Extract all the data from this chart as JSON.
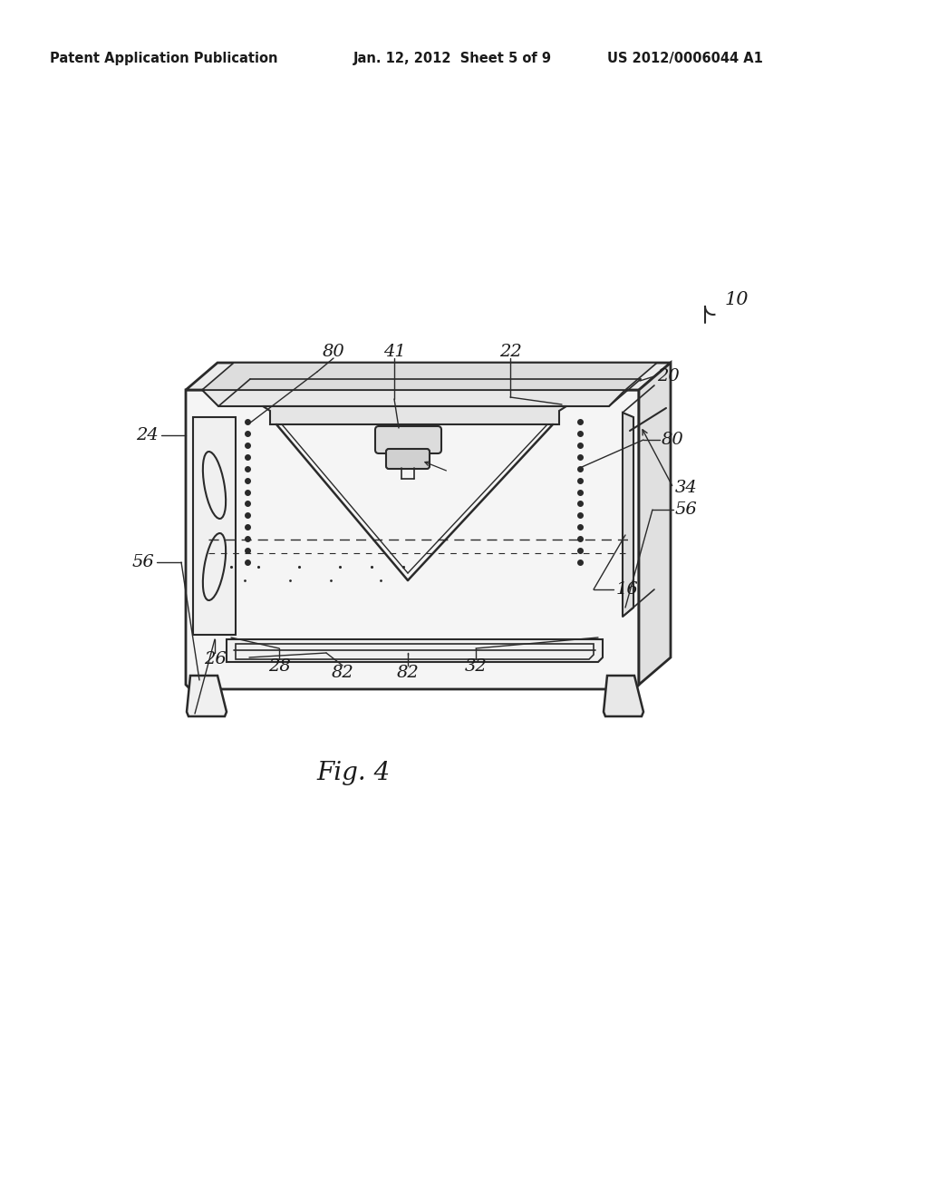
{
  "background_color": "#ffffff",
  "header_left": "Patent Application Publication",
  "header_center": "Jan. 12, 2012  Sheet 5 of 9",
  "header_right": "US 2012/0006044 A1",
  "figure_label": "Fig. 4",
  "line_color": "#2a2a2a",
  "text_color": "#1a1a1a"
}
